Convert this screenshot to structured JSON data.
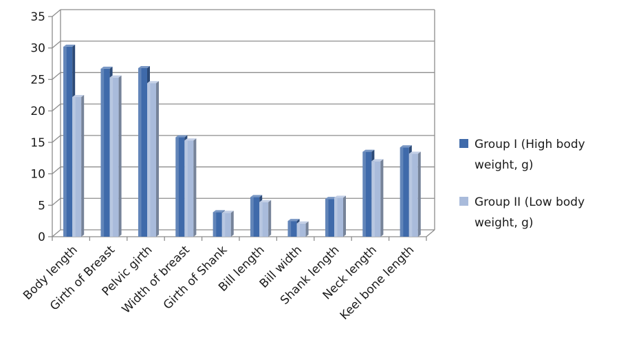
{
  "chart_data": {
    "type": "bar",
    "categories": [
      "Body length",
      "Girth of Breast",
      "Pelvic girth",
      "Width of breast",
      "Girth of Shank",
      "Bill length",
      "Bill width",
      "Shank length",
      "Neck length",
      "Keel bone length"
    ],
    "series": [
      {
        "name": "Group I (High body weight, g)",
        "values": [
          30.2,
          26.7,
          26.8,
          15.8,
          3.9,
          6.3,
          2.5,
          6.0,
          13.5,
          14.2
        ],
        "color": "#3f6aaa"
      },
      {
        "name": "Group II (Low body weight, g)",
        "values": [
          22.2,
          25.3,
          24.4,
          15.3,
          3.8,
          5.5,
          2.1,
          6.2,
          12.0,
          13.2
        ],
        "color": "#a9bbdb"
      }
    ],
    "yticks": [
      "0",
      "5",
      "10",
      "15",
      "20",
      "25",
      "30",
      "35"
    ],
    "ylim": [
      0,
      35
    ],
    "grid": true,
    "legend_position": "right",
    "legend_lines": [
      [
        "Group I (High body",
        "weight, g)"
      ],
      [
        "Group II (Low body",
        "weight, g)"
      ]
    ]
  }
}
